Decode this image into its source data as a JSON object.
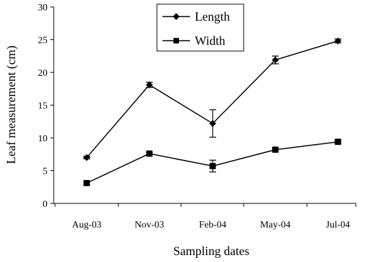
{
  "chart_data": {
    "type": "line",
    "categories": [
      "Aug-03",
      "Nov-03",
      "Feb-04",
      "May-04",
      "Jul-04"
    ],
    "series": [
      {
        "name": "Length",
        "marker": "diamond",
        "values": [
          7.0,
          18.1,
          12.2,
          21.9,
          24.8
        ],
        "error": [
          0.2,
          0.4,
          2.1,
          0.6,
          0.3
        ]
      },
      {
        "name": "Width",
        "marker": "square",
        "values": [
          3.1,
          7.6,
          5.7,
          8.2,
          9.4
        ],
        "error": [
          0.2,
          0.2,
          0.9,
          0.2,
          0.2
        ]
      }
    ],
    "xlabel": "Sampling dates",
    "ylabel": "Leaf measurement (cm)",
    "ylim": [
      0,
      30
    ],
    "yticks": [
      0,
      5,
      10,
      15,
      20,
      25,
      30
    ],
    "grid": false,
    "legend_position": "top-center",
    "line_color": "#000000"
  }
}
